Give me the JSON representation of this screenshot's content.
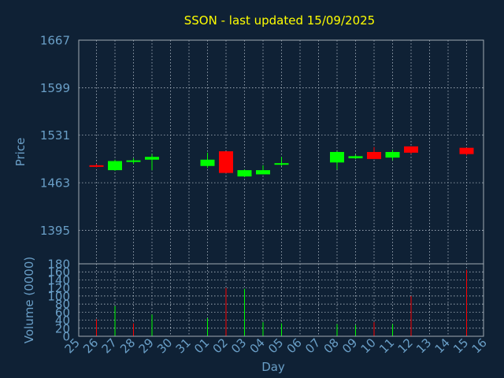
{
  "chart_data": {
    "type": "candlestick",
    "title": "SSON - last updated 15/09/2025",
    "colors": {
      "background": "#0f2135",
      "title": "#ffff00",
      "axis_text": "#6a9fc7",
      "grid": "#c8d2dc",
      "frame": "#a0aab4",
      "up": "#00ff00",
      "down": "#ff0000"
    },
    "x_label": "Day",
    "x_ticks": [
      "25",
      "26",
      "27",
      "28",
      "29",
      "30",
      "31",
      "01",
      "02",
      "03",
      "04",
      "05",
      "06",
      "07",
      "08",
      "09",
      "10",
      "11",
      "12",
      "13",
      "14",
      "15",
      "16"
    ],
    "price": {
      "y_label": "Price",
      "ylim": [
        1347,
        1667
      ],
      "y_ticks": [
        1395,
        1463,
        1531,
        1599,
        1667
      ],
      "candles": [
        {
          "day": "26",
          "open": 1488,
          "high": 1490,
          "low": 1485,
          "close": 1486
        },
        {
          "day": "27",
          "open": 1481,
          "high": 1496,
          "low": 1480,
          "close": 1494
        },
        {
          "day": "28",
          "open": 1495,
          "high": 1498,
          "low": 1490,
          "close": 1495
        },
        {
          "day": "29",
          "open": 1496,
          "high": 1504,
          "low": 1481,
          "close": 1500
        },
        {
          "day": "01",
          "open": 1487,
          "high": 1506,
          "low": 1484,
          "close": 1496
        },
        {
          "day": "02",
          "open": 1508,
          "high": 1508,
          "low": 1477,
          "close": 1477
        },
        {
          "day": "03",
          "open": 1472,
          "high": 1482,
          "low": 1471,
          "close": 1481
        },
        {
          "day": "04",
          "open": 1475,
          "high": 1488,
          "low": 1475,
          "close": 1481
        },
        {
          "day": "05",
          "open": 1490,
          "high": 1500,
          "low": 1487,
          "close": 1491
        },
        {
          "day": "08",
          "open": 1492,
          "high": 1508,
          "low": 1482,
          "close": 1507
        },
        {
          "day": "09",
          "open": 1498,
          "high": 1503,
          "low": 1497,
          "close": 1501
        },
        {
          "day": "10",
          "open": 1507,
          "high": 1514,
          "low": 1497,
          "close": 1497
        },
        {
          "day": "11",
          "open": 1499,
          "high": 1510,
          "low": 1495,
          "close": 1507
        },
        {
          "day": "12",
          "open": 1515,
          "high": 1515,
          "low": 1504,
          "close": 1506
        },
        {
          "day": "15",
          "open": 1513,
          "high": 1513,
          "low": 1502,
          "close": 1504
        }
      ]
    },
    "volume": {
      "y_label": "Volume (0000)",
      "ylim": [
        0,
        180
      ],
      "y_ticks": [
        0,
        20,
        40,
        60,
        80,
        100,
        120,
        140,
        160,
        180
      ],
      "bars": [
        {
          "day": "26",
          "value": 42,
          "dir": "down"
        },
        {
          "day": "27",
          "value": 75,
          "dir": "up"
        },
        {
          "day": "28",
          "value": 32,
          "dir": "down"
        },
        {
          "day": "29",
          "value": 54,
          "dir": "up"
        },
        {
          "day": "01",
          "value": 45,
          "dir": "up"
        },
        {
          "day": "02",
          "value": 120,
          "dir": "down"
        },
        {
          "day": "03",
          "value": 118,
          "dir": "up"
        },
        {
          "day": "04",
          "value": 35,
          "dir": "up"
        },
        {
          "day": "05",
          "value": 32,
          "dir": "up"
        },
        {
          "day": "08",
          "value": 30,
          "dir": "up"
        },
        {
          "day": "09",
          "value": 28,
          "dir": "up"
        },
        {
          "day": "10",
          "value": 35,
          "dir": "down"
        },
        {
          "day": "11",
          "value": 30,
          "dir": "up"
        },
        {
          "day": "12",
          "value": 100,
          "dir": "down"
        },
        {
          "day": "15",
          "value": 165,
          "dir": "down"
        }
      ]
    }
  }
}
